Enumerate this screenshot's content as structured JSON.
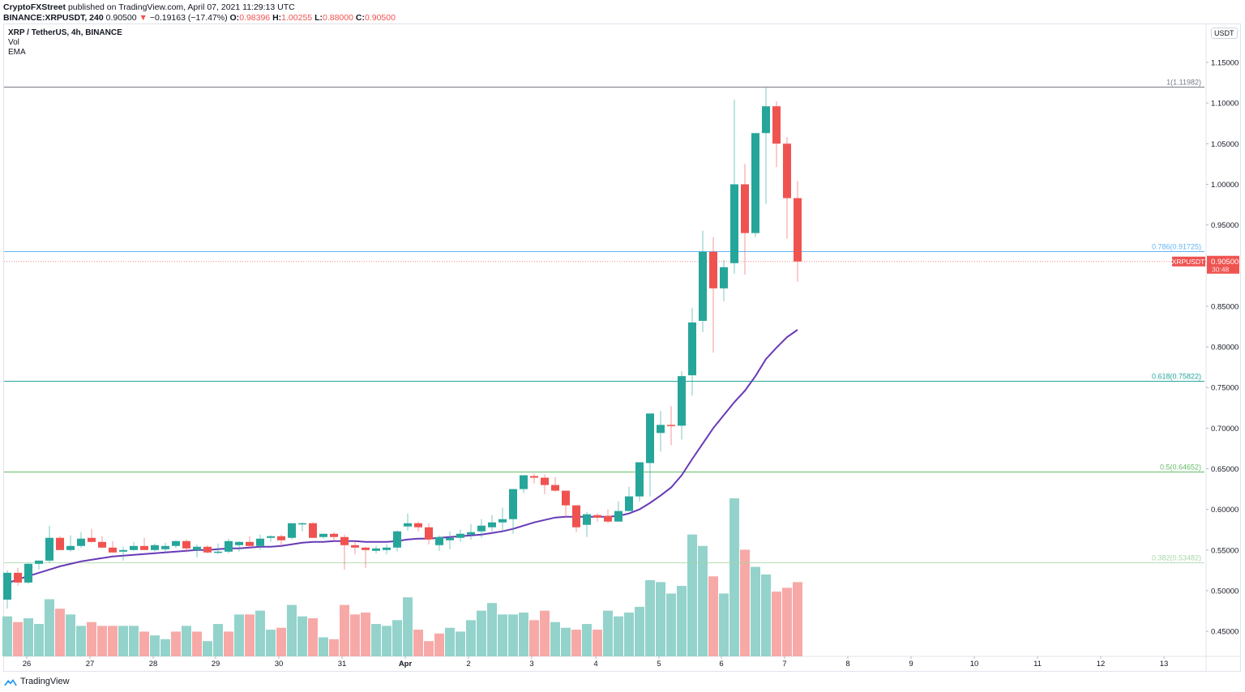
{
  "header": {
    "publisher": "CryptoFXStreet",
    "published_text": "published on TradingView.com, April 07, 2021 11:29:13 UTC",
    "symbol_full": "BINANCE:XRPUSDT, 240",
    "last_price": "0.90500",
    "change_arrow": "▼",
    "change": "−0.19163 (−17.47%)",
    "open_label": "O:",
    "open": "0.98396",
    "high_label": "H:",
    "high": "1.00255",
    "low_label": "L:",
    "low": "0.88000",
    "close_label": "C:",
    "close": "0.90500"
  },
  "legend": {
    "title": "XRP / TetherUS, 4h, BINANCE",
    "indicator1": "Vol",
    "indicator2": "EMA"
  },
  "axis": {
    "currency_badge": "USDT",
    "price_label": {
      "symbol": "XRPUSDT",
      "price": "0.90500",
      "countdown": "30:48"
    }
  },
  "footer": {
    "brand": "TradingView"
  },
  "colors": {
    "up": "#26a69a",
    "down": "#ef5350",
    "vol_up": "#94d3cb",
    "vol_down": "#f7a9a7",
    "ema": "#673ab7",
    "fib_1": "#787b86",
    "fib_0786": "#64b5f6",
    "fib_0618": "#26a69a",
    "fib_05": "#66bb6a",
    "fib_0382": "#a5d6a7",
    "last_price_line": "#ef5350"
  },
  "chart_data": {
    "type": "candlestick",
    "title": "XRP / TetherUS, 4h, BINANCE",
    "xlabel": "",
    "ylabel": "USDT",
    "ylim": [
      0.42,
      1.17
    ],
    "grid": false,
    "x_ticks": [
      "26",
      "27",
      "28",
      "29",
      "30",
      "31",
      "Apr",
      "2",
      "3",
      "4",
      "5",
      "6",
      "7",
      "8",
      "9",
      "10",
      "11",
      "12",
      "13"
    ],
    "y_ticks": [
      "1.15000",
      "1.10000",
      "1.05000",
      "1.00000",
      "0.95000",
      "0.90000",
      "0.85000",
      "0.80000",
      "0.75000",
      "0.70000",
      "0.65000",
      "0.60000",
      "0.55000",
      "0.50000",
      "0.45000"
    ],
    "fib_levels": [
      {
        "label": "1(1.11982)",
        "value": 1.11982
      },
      {
        "label": "0.786(0.91725)",
        "value": 0.91725
      },
      {
        "label": "0.618(0.75822)",
        "value": 0.75822
      },
      {
        "label": "0.5(0.64652)",
        "value": 0.64652
      },
      {
        "label": "0.382(0.53482)",
        "value": 0.53482
      }
    ],
    "last_price": 0.905,
    "candles": [
      [
        0.489,
        0.525,
        0.478,
        0.522
      ],
      [
        0.522,
        0.528,
        0.506,
        0.51
      ],
      [
        0.51,
        0.534,
        0.508,
        0.533
      ],
      [
        0.533,
        0.537,
        0.526,
        0.537
      ],
      [
        0.537,
        0.58,
        0.534,
        0.565
      ],
      [
        0.565,
        0.567,
        0.55,
        0.55
      ],
      [
        0.55,
        0.568,
        0.548,
        0.555
      ],
      [
        0.555,
        0.572,
        0.553,
        0.564
      ],
      [
        0.565,
        0.576,
        0.559,
        0.56
      ],
      [
        0.56,
        0.567,
        0.552,
        0.553
      ],
      [
        0.553,
        0.561,
        0.547,
        0.547
      ],
      [
        0.548,
        0.554,
        0.537,
        0.55
      ],
      [
        0.55,
        0.56,
        0.549,
        0.555
      ],
      [
        0.555,
        0.565,
        0.55,
        0.55
      ],
      [
        0.55,
        0.558,
        0.548,
        0.556
      ],
      [
        0.551,
        0.559,
        0.546,
        0.555
      ],
      [
        0.555,
        0.562,
        0.552,
        0.561
      ],
      [
        0.561,
        0.563,
        0.547,
        0.552
      ],
      [
        0.55,
        0.557,
        0.541,
        0.554
      ],
      [
        0.554,
        0.556,
        0.546,
        0.547
      ],
      [
        0.547,
        0.558,
        0.545,
        0.548
      ],
      [
        0.548,
        0.564,
        0.546,
        0.561
      ],
      [
        0.556,
        0.561,
        0.548,
        0.56
      ],
      [
        0.56,
        0.567,
        0.553,
        0.555
      ],
      [
        0.555,
        0.569,
        0.55,
        0.564
      ],
      [
        0.565,
        0.568,
        0.56,
        0.567
      ],
      [
        0.567,
        0.569,
        0.555,
        0.562
      ],
      [
        0.565,
        0.579,
        0.563,
        0.583
      ],
      [
        0.583,
        0.584,
        0.573,
        0.583
      ],
      [
        0.583,
        0.584,
        0.565,
        0.565
      ],
      [
        0.566,
        0.57,
        0.564,
        0.57
      ],
      [
        0.57,
        0.572,
        0.561,
        0.566
      ],
      [
        0.566,
        0.569,
        0.526,
        0.556
      ],
      [
        0.556,
        0.561,
        0.545,
        0.553
      ],
      [
        0.553,
        0.554,
        0.528,
        0.55
      ],
      [
        0.549,
        0.555,
        0.546,
        0.552
      ],
      [
        0.55,
        0.557,
        0.545,
        0.553
      ],
      [
        0.553,
        0.574,
        0.548,
        0.573
      ],
      [
        0.579,
        0.595,
        0.574,
        0.583
      ],
      [
        0.583,
        0.585,
        0.573,
        0.578
      ],
      [
        0.578,
        0.583,
        0.557,
        0.563
      ],
      [
        0.556,
        0.568,
        0.549,
        0.566
      ],
      [
        0.562,
        0.573,
        0.551,
        0.565
      ],
      [
        0.565,
        0.575,
        0.56,
        0.57
      ],
      [
        0.569,
        0.582,
        0.563,
        0.572
      ],
      [
        0.573,
        0.588,
        0.565,
        0.58
      ],
      [
        0.578,
        0.593,
        0.573,
        0.584
      ],
      [
        0.584,
        0.602,
        0.574,
        0.588
      ],
      [
        0.588,
        0.622,
        0.57,
        0.625
      ],
      [
        0.625,
        0.642,
        0.62,
        0.642
      ],
      [
        0.641,
        0.644,
        0.632,
        0.639
      ],
      [
        0.639,
        0.643,
        0.619,
        0.63
      ],
      [
        0.63,
        0.64,
        0.622,
        0.623
      ],
      [
        0.623,
        0.617,
        0.59,
        0.605
      ],
      [
        0.605,
        0.605,
        0.572,
        0.578
      ],
      [
        0.581,
        0.597,
        0.566,
        0.594
      ],
      [
        0.593,
        0.595,
        0.585,
        0.59
      ],
      [
        0.592,
        0.6,
        0.583,
        0.585
      ],
      [
        0.585,
        0.61,
        0.585,
        0.598
      ],
      [
        0.598,
        0.628,
        0.598,
        0.616
      ],
      [
        0.616,
        0.65,
        0.61,
        0.658
      ],
      [
        0.657,
        0.702,
        0.616,
        0.718
      ],
      [
        0.694,
        0.721,
        0.671,
        0.704
      ],
      [
        0.704,
        0.727,
        0.679,
        0.703
      ],
      [
        0.703,
        0.77,
        0.686,
        0.764
      ],
      [
        0.765,
        0.848,
        0.74,
        0.83
      ],
      [
        0.832,
        0.943,
        0.818,
        0.917
      ],
      [
        0.917,
        0.935,
        0.793,
        0.872
      ],
      [
        0.872,
        0.907,
        0.856,
        0.898
      ],
      [
        0.903,
        1.104,
        0.89,
        1.0
      ],
      [
        1.0,
        1.025,
        0.889,
        0.94
      ],
      [
        0.94,
        1.062,
        0.935,
        1.063
      ],
      [
        1.063,
        1.119,
        0.976,
        1.096
      ],
      [
        1.096,
        1.102,
        1.021,
        1.05
      ],
      [
        1.05,
        1.058,
        0.933,
        0.983
      ],
      [
        0.983,
        1.004,
        0.88,
        0.905
      ]
    ],
    "volume": [
      [
        0.21,
        "up"
      ],
      [
        0.18,
        "down"
      ],
      [
        0.2,
        "up"
      ],
      [
        0.17,
        "up"
      ],
      [
        0.3,
        "up"
      ],
      [
        0.25,
        "down"
      ],
      [
        0.22,
        "up"
      ],
      [
        0.16,
        "up"
      ],
      [
        0.18,
        "down"
      ],
      [
        0.16,
        "down"
      ],
      [
        0.16,
        "down"
      ],
      [
        0.16,
        "up"
      ],
      [
        0.16,
        "up"
      ],
      [
        0.13,
        "down"
      ],
      [
        0.11,
        "up"
      ],
      [
        0.09,
        "up"
      ],
      [
        0.13,
        "down"
      ],
      [
        0.16,
        "up"
      ],
      [
        0.13,
        "down"
      ],
      [
        0.08,
        "up"
      ],
      [
        0.17,
        "up"
      ],
      [
        0.13,
        "down"
      ],
      [
        0.22,
        "up"
      ],
      [
        0.22,
        "down"
      ],
      [
        0.24,
        "up"
      ],
      [
        0.14,
        "up"
      ],
      [
        0.15,
        "down"
      ],
      [
        0.27,
        "up"
      ],
      [
        0.21,
        "up"
      ],
      [
        0.2,
        "down"
      ],
      [
        0.1,
        "up"
      ],
      [
        0.09,
        "down"
      ],
      [
        0.27,
        "down"
      ],
      [
        0.22,
        "down"
      ],
      [
        0.23,
        "down"
      ],
      [
        0.17,
        "up"
      ],
      [
        0.16,
        "up"
      ],
      [
        0.19,
        "up"
      ],
      [
        0.31,
        "up"
      ],
      [
        0.14,
        "down"
      ],
      [
        0.08,
        "down"
      ],
      [
        0.12,
        "down"
      ],
      [
        0.15,
        "up"
      ],
      [
        0.13,
        "up"
      ],
      [
        0.19,
        "up"
      ],
      [
        0.24,
        "up"
      ],
      [
        0.28,
        "up"
      ],
      [
        0.22,
        "up"
      ],
      [
        0.22,
        "up"
      ],
      [
        0.23,
        "up"
      ],
      [
        0.19,
        "down"
      ],
      [
        0.24,
        "down"
      ],
      [
        0.18,
        "up"
      ],
      [
        0.15,
        "up"
      ],
      [
        0.14,
        "down"
      ],
      [
        0.17,
        "up"
      ],
      [
        0.14,
        "down"
      ],
      [
        0.24,
        "up"
      ],
      [
        0.21,
        "up"
      ],
      [
        0.23,
        "up"
      ],
      [
        0.26,
        "up"
      ],
      [
        0.4,
        "up"
      ],
      [
        0.39,
        "up"
      ],
      [
        0.33,
        "up"
      ],
      [
        0.37,
        "up"
      ],
      [
        0.64,
        "up"
      ],
      [
        0.58,
        "up"
      ],
      [
        0.42,
        "down"
      ],
      [
        0.33,
        "up"
      ],
      [
        0.83,
        "up"
      ],
      [
        0.56,
        "down"
      ],
      [
        0.47,
        "up"
      ],
      [
        0.43,
        "up"
      ],
      [
        0.34,
        "down"
      ],
      [
        0.36,
        "down"
      ],
      [
        0.39,
        "down"
      ]
    ],
    "ema": [
      0.509,
      0.514,
      0.518,
      0.522,
      0.526,
      0.53,
      0.533,
      0.536,
      0.538,
      0.54,
      0.542,
      0.543,
      0.544,
      0.545,
      0.546,
      0.547,
      0.548,
      0.549,
      0.55,
      0.55,
      0.551,
      0.552,
      0.552,
      0.553,
      0.554,
      0.554,
      0.555,
      0.557,
      0.559,
      0.56,
      0.56,
      0.561,
      0.561,
      0.561,
      0.56,
      0.56,
      0.56,
      0.561,
      0.563,
      0.564,
      0.564,
      0.565,
      0.566,
      0.567,
      0.568,
      0.569,
      0.571,
      0.573,
      0.576,
      0.58,
      0.584,
      0.587,
      0.59,
      0.591,
      0.591,
      0.591,
      0.591,
      0.591,
      0.592,
      0.595,
      0.6,
      0.608,
      0.617,
      0.627,
      0.642,
      0.662,
      0.681,
      0.7,
      0.716,
      0.732,
      0.746,
      0.764,
      0.785,
      0.799,
      0.812,
      0.821
    ]
  }
}
